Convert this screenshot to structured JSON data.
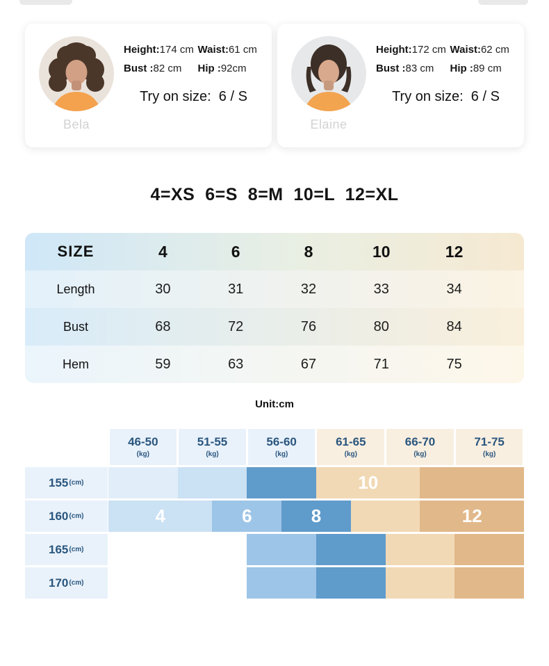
{
  "page": {
    "background": "#ffffff"
  },
  "models": [
    {
      "name": "Bela",
      "stats": [
        {
          "label": "Height:",
          "value": "174 cm"
        },
        {
          "label": "Waist:",
          "value": "61 cm"
        },
        {
          "label": "Bust :",
          "value": "82 cm"
        },
        {
          "label": "Hip :",
          "value": "92cm"
        }
      ],
      "try_on": "Try on size:  6 / S"
    },
    {
      "name": "Elaine",
      "stats": [
        {
          "label": "Height:",
          "value": "172 cm"
        },
        {
          "label": "Waist:",
          "value": "62 cm"
        },
        {
          "label": "Bust :",
          "value": "83 cm"
        },
        {
          "label": "Hip :",
          "value": "89 cm"
        }
      ],
      "try_on": "Try on size:  6 / S"
    }
  ],
  "size_legend": "4=XS  6=S  8=M  10=L  12=XL",
  "size_table": {
    "header": [
      "SIZE",
      "4",
      "6",
      "8",
      "10",
      "12"
    ],
    "rows": [
      {
        "label": "Length",
        "values": [
          "30",
          "31",
          "32",
          "33",
          "34"
        ]
      },
      {
        "label": "Bust",
        "values": [
          "68",
          "72",
          "76",
          "80",
          "84"
        ]
      },
      {
        "label": "Hem",
        "values": [
          "59",
          "63",
          "67",
          "71",
          "75"
        ]
      }
    ],
    "unit": "Unit:cm"
  },
  "fit_chart": {
    "headers": [
      {
        "range": "46-50",
        "unit": "(kg)",
        "tone": "blue"
      },
      {
        "range": "51-55",
        "unit": "(kg)",
        "tone": "blue"
      },
      {
        "range": "56-60",
        "unit": "(kg)",
        "tone": "blue"
      },
      {
        "range": "61-65",
        "unit": "(kg)",
        "tone": "tan"
      },
      {
        "range": "66-70",
        "unit": "(kg)",
        "tone": "tan"
      },
      {
        "range": "71-75",
        "unit": "(kg)",
        "tone": "tan"
      }
    ],
    "rows": [
      {
        "height": "155",
        "unit": "(cm)",
        "blocks": [
          {
            "color": "b0",
            "start": 0,
            "span": 1
          },
          {
            "color": "b1",
            "start": 1,
            "span": 1
          },
          {
            "color": "b3",
            "start": 2,
            "span": 1
          },
          {
            "color": "t1",
            "start": 3,
            "span": 1.5,
            "label": "10"
          },
          {
            "color": "t2",
            "start": 4.5,
            "span": 1.5
          }
        ]
      },
      {
        "height": "160",
        "unit": "(cm)",
        "blocks": [
          {
            "color": "b1",
            "start": 0,
            "span": 1.5,
            "label": "4"
          },
          {
            "color": "b2",
            "start": 1.5,
            "span": 1,
            "label": "6"
          },
          {
            "color": "b3",
            "start": 2.5,
            "span": 1,
            "label": "8"
          },
          {
            "color": "t1",
            "start": 3.5,
            "span": 1
          },
          {
            "color": "t2",
            "start": 4.5,
            "span": 1.5,
            "label": "12"
          }
        ]
      },
      {
        "height": "165",
        "unit": "(cm)",
        "blocks": [
          {
            "color": "b2",
            "start": 2,
            "span": 1
          },
          {
            "color": "b3",
            "start": 3,
            "span": 1
          },
          {
            "color": "t1",
            "start": 4,
            "span": 1
          },
          {
            "color": "t2",
            "start": 5,
            "span": 1
          }
        ]
      },
      {
        "height": "170",
        "unit": "(cm)",
        "blocks": [
          {
            "color": "b2",
            "start": 2,
            "span": 1
          },
          {
            "color": "b3",
            "start": 3,
            "span": 1
          },
          {
            "color": "t1",
            "start": 4,
            "span": 1
          },
          {
            "color": "t2",
            "start": 5,
            "span": 1
          }
        ]
      }
    ],
    "colors": {
      "b0": "#e1eef9",
      "b1": "#cbe1f4",
      "b2": "#9dc5e7",
      "b3": "#5f9bcb",
      "t1": "#f1d9b5",
      "t2": "#e1b88a",
      "header_blue": "#e9f2fb",
      "header_tan": "#f9efe1",
      "label_text": "#2a567e"
    }
  }
}
